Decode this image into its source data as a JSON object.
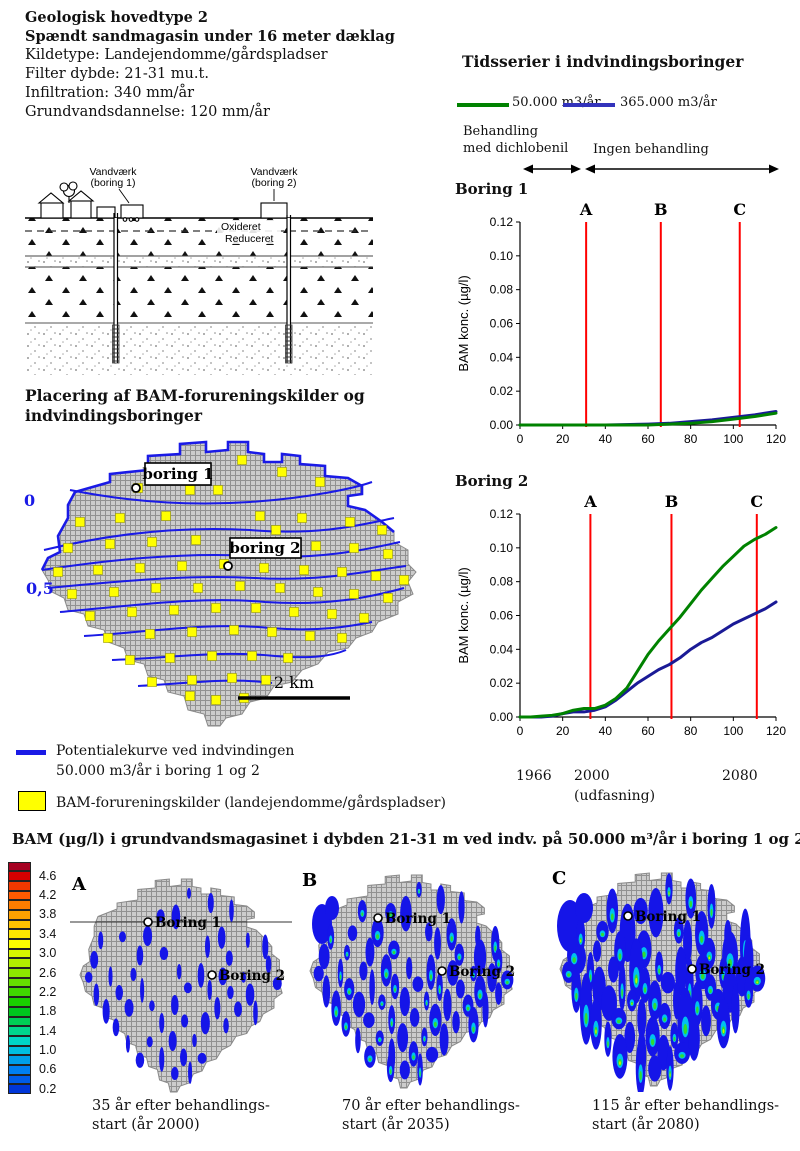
{
  "info": {
    "title_line1": "Geologisk hovedtype 2",
    "title_line2": "Spændt sandmagasin under 16 meter dæklag",
    "detail_line1": "Kildetype: Landejendomme/gårdspladser",
    "detail_line2": "Filter dybde: 21-31 mu.t.",
    "detail_line3": "Infiltration: 340 mm/år",
    "detail_line4": "Grundvandsdannelse: 120 mm/år"
  },
  "cross_section": {
    "well1_line1": "Vandværk",
    "well1_line2": "(boring 1)",
    "well2_line1": "Vandværk",
    "well2_line2": "(boring 2)",
    "oxidized_label": "Oxideret",
    "reduced_label": "Reduceret"
  },
  "map": {
    "title_line1": "Placering af BAM-forureningskilder og",
    "title_line2": "indvindingsboringer",
    "contour_label_0": "0",
    "contour_label_05": "0,5",
    "boring1_label": "boring 1",
    "boring2_label": "boring 2",
    "scale_label": "2 km",
    "colors": {
      "contour": "#1a1ae6",
      "source_fill": "#ffff00",
      "source_stroke": "#9a9a00",
      "region_fill": "#cccccc",
      "region_grid": "#919191"
    },
    "sources": [
      [
        222,
        30
      ],
      [
        262,
        42
      ],
      [
        170,
        60
      ],
      [
        300,
        52
      ],
      [
        118,
        58
      ],
      [
        198,
        60
      ],
      [
        60,
        92
      ],
      [
        100,
        88
      ],
      [
        146,
        86
      ],
      [
        240,
        86
      ],
      [
        282,
        88
      ],
      [
        330,
        92
      ],
      [
        362,
        100
      ],
      [
        48,
        118
      ],
      [
        90,
        114
      ],
      [
        132,
        112
      ],
      [
        176,
        110
      ],
      [
        256,
        100
      ],
      [
        296,
        116
      ],
      [
        334,
        118
      ],
      [
        368,
        124
      ],
      [
        38,
        142
      ],
      [
        78,
        140
      ],
      [
        120,
        138
      ],
      [
        162,
        136
      ],
      [
        204,
        134
      ],
      [
        244,
        138
      ],
      [
        284,
        140
      ],
      [
        322,
        142
      ],
      [
        356,
        146
      ],
      [
        384,
        150
      ],
      [
        52,
        164
      ],
      [
        94,
        162
      ],
      [
        136,
        158
      ],
      [
        178,
        158
      ],
      [
        220,
        156
      ],
      [
        260,
        158
      ],
      [
        298,
        162
      ],
      [
        334,
        164
      ],
      [
        368,
        168
      ],
      [
        70,
        186
      ],
      [
        112,
        182
      ],
      [
        154,
        180
      ],
      [
        196,
        178
      ],
      [
        236,
        178
      ],
      [
        274,
        182
      ],
      [
        312,
        184
      ],
      [
        344,
        188
      ],
      [
        88,
        208
      ],
      [
        130,
        204
      ],
      [
        172,
        202
      ],
      [
        214,
        200
      ],
      [
        252,
        202
      ],
      [
        290,
        206
      ],
      [
        322,
        208
      ],
      [
        110,
        230
      ],
      [
        150,
        228
      ],
      [
        192,
        226
      ],
      [
        232,
        226
      ],
      [
        268,
        228
      ],
      [
        132,
        252
      ],
      [
        172,
        250
      ],
      [
        212,
        248
      ],
      [
        246,
        250
      ],
      [
        170,
        266
      ],
      [
        196,
        270
      ],
      [
        224,
        268
      ]
    ]
  },
  "legend": {
    "potential_line1": "Potentialekurve ved indvindingen",
    "potential_line2": "50.000 m3/år i boring 1 og 2",
    "bam_sources": "BAM-forureningskilder (landejendomme/gårdspladser)"
  },
  "timeseries": {
    "title": "Tidsserier i indvindingsboringer",
    "legend": [
      {
        "label": "50.000 m3/år",
        "color": "#008200"
      },
      {
        "label": "365.000 m3/år",
        "color": "#3333bb"
      }
    ],
    "treatment_line1": "Behandling",
    "treatment_line2": "med dichlobenil",
    "no_treatment_label": "Ingen behandling",
    "years": {
      "start": "1966",
      "phaseout": "2000",
      "note": "(udfasning)",
      "end": "2080"
    }
  },
  "chart_data": [
    {
      "type": "line",
      "title": "Boring 1",
      "ylabel": "BAM konc. (µg/l)",
      "xlim": [
        0,
        120
      ],
      "ylim": [
        0,
        0.12
      ],
      "xticks": [
        0,
        20,
        40,
        60,
        80,
        100,
        120
      ],
      "yticks": [
        0,
        0.02,
        0.04,
        0.06,
        0.08,
        0.1,
        0.12
      ],
      "markers": {
        "labels": [
          "A",
          "B",
          "C"
        ],
        "x": [
          31,
          66,
          103
        ],
        "color": "#ff0000"
      },
      "series": [
        {
          "name": "50.000 m3/år",
          "color": "#008200",
          "x": [
            0,
            20,
            40,
            60,
            70,
            80,
            90,
            100,
            110,
            120
          ],
          "y": [
            0,
            0,
            0,
            0,
            0.0005,
            0.001,
            0.002,
            0.0035,
            0.005,
            0.007
          ]
        },
        {
          "name": "365.000 m3/år",
          "color": "#1a1a96",
          "x": [
            0,
            20,
            40,
            60,
            70,
            80,
            90,
            100,
            110,
            120
          ],
          "y": [
            0,
            0,
            0,
            0.0005,
            0.001,
            0.002,
            0.003,
            0.0045,
            0.006,
            0.008
          ]
        }
      ]
    },
    {
      "type": "line",
      "title": "Boring 2",
      "ylabel": "BAM konc. (µg/l)",
      "xlim": [
        0,
        120
      ],
      "ylim": [
        0,
        0.12
      ],
      "xticks": [
        0,
        20,
        40,
        60,
        80,
        100,
        120
      ],
      "yticks": [
        0,
        0.02,
        0.04,
        0.06,
        0.08,
        0.1,
        0.12
      ],
      "markers": {
        "labels": [
          "A",
          "B",
          "C"
        ],
        "x": [
          33,
          71,
          111
        ],
        "color": "#ff0000"
      },
      "series": [
        {
          "name": "50.000 m3/år",
          "color": "#008200",
          "x": [
            0,
            5,
            10,
            15,
            20,
            25,
            30,
            35,
            40,
            45,
            50,
            55,
            60,
            65,
            70,
            75,
            80,
            85,
            90,
            95,
            100,
            105,
            110,
            115,
            120
          ],
          "y": [
            0,
            0,
            0.0005,
            0.001,
            0.002,
            0.004,
            0.005,
            0.005,
            0.007,
            0.011,
            0.017,
            0.027,
            0.037,
            0.045,
            0.052,
            0.059,
            0.067,
            0.075,
            0.082,
            0.089,
            0.095,
            0.101,
            0.105,
            0.108,
            0.112
          ]
        },
        {
          "name": "365.000 m3/år",
          "color": "#1a1a96",
          "x": [
            0,
            5,
            10,
            15,
            20,
            25,
            30,
            35,
            40,
            45,
            50,
            55,
            60,
            65,
            70,
            75,
            80,
            85,
            90,
            95,
            100,
            105,
            110,
            115,
            120
          ],
          "y": [
            0,
            0,
            0,
            0.0005,
            0.002,
            0.003,
            0.003,
            0.004,
            0.006,
            0.01,
            0.015,
            0.02,
            0.024,
            0.028,
            0.031,
            0.035,
            0.04,
            0.044,
            0.047,
            0.051,
            0.055,
            0.058,
            0.061,
            0.064,
            0.068
          ]
        }
      ]
    }
  ],
  "bottom": {
    "title": "BAM (µg/l) i grundvandsmagasinet i dybden 21-31 m ved indv. på 50.000 m³/år i boring 1 og 2",
    "scale": {
      "values": [
        "4.6",
        "4.2",
        "3.8",
        "3.4",
        "3.0",
        "2.6",
        "2.2",
        "1.8",
        "1.4",
        "1.0",
        "0.6",
        "0.2"
      ],
      "colors": [
        "#a50021",
        "#d40000",
        "#f03800",
        "#ff5a00",
        "#ff7d00",
        "#ffa000",
        "#ffc300",
        "#ffe600",
        "#fdff00",
        "#d8f700",
        "#b2ef00",
        "#8ce600",
        "#66de00",
        "#40d600",
        "#1ace00",
        "#00c61e",
        "#00ce55",
        "#00d68d",
        "#00d6c6",
        "#00bfe0",
        "#009fe8",
        "#007ff0",
        "#005ce8",
        "#0036d8"
      ]
    },
    "plume_colors": {
      "blue": "#1515e8",
      "cyan": "#00c0f0",
      "green": "#30dc30",
      "yellow": "#c8f000"
    },
    "panels": [
      {
        "letter": "A",
        "boring1_label": "Boring 1",
        "boring2_label": "Boring 2",
        "caption_line1": "35 år efter behandlings-",
        "caption_line2": "start (år 2000)",
        "section_line": true,
        "plume": {
          "rx": 3.4,
          "ry": 9,
          "cores": false,
          "skip": 5,
          "lobes": []
        }
      },
      {
        "letter": "B",
        "boring1_label": "Boring 1",
        "boring2_label": "Boring 2",
        "caption_line1": "70 år efter behandlings-",
        "caption_line2": "start (år 2035)",
        "section_line": false,
        "plume": {
          "rx": 4.6,
          "ry": 13,
          "cores": true,
          "skip": 0,
          "lobes": [
            [
              26,
              62,
              10,
              20
            ],
            [
              36,
              46,
              7,
              12
            ]
          ]
        }
      },
      {
        "letter": "C",
        "boring1_label": "Boring 1",
        "boring2_label": "Boring 2",
        "caption_line1": "115 år efter behandlings-",
        "caption_line2": "start (år 2080)",
        "section_line": false,
        "plume": {
          "rx": 6,
          "ry": 18,
          "cores": true,
          "skip": 0,
          "lobes": [
            [
              24,
              66,
              13,
              26
            ],
            [
              38,
              48,
              9,
              15
            ],
            [
              32,
              98,
              8,
              16
            ]
          ]
        }
      }
    ]
  }
}
